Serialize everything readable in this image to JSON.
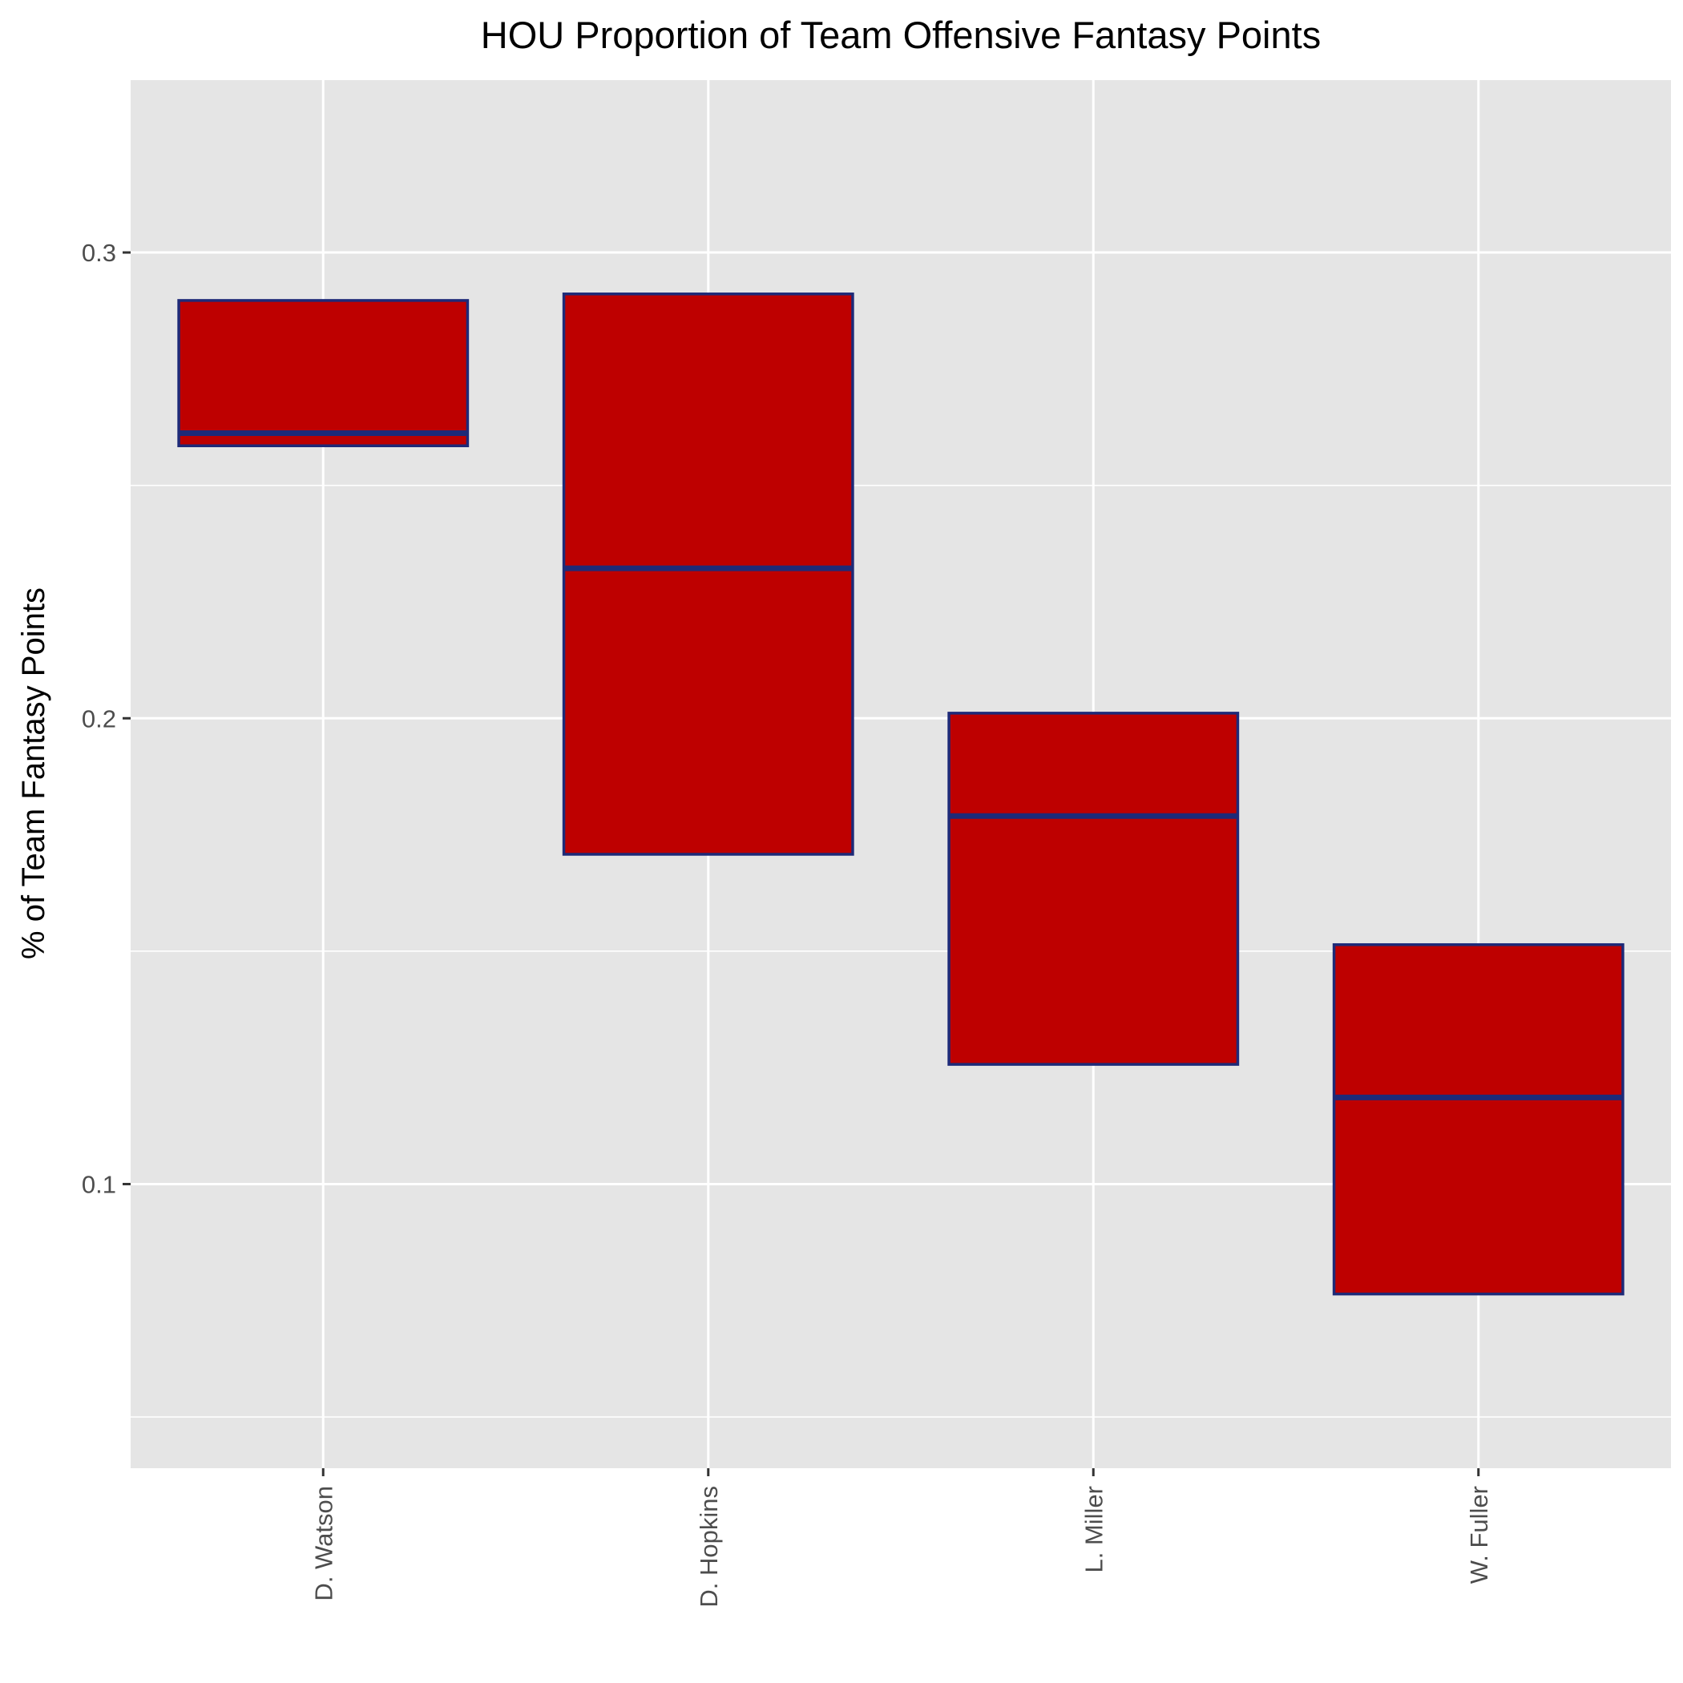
{
  "chart_data": {
    "type": "boxplot",
    "title": "HOU Proportion of Team Offensive Fantasy Points",
    "xlabel": "",
    "ylabel": "% of Team Fantasy Points",
    "ylim": [
      0.039,
      0.337
    ],
    "yticks": [
      0.1,
      0.2,
      0.3
    ],
    "ytick_labels": [
      "0.1",
      "0.2",
      "0.3"
    ],
    "grid": true,
    "categories": [
      "D. Watson",
      "D. Hopkins",
      "L. Miller",
      "W. Fuller"
    ],
    "boxes": [
      {
        "category": "D. Watson",
        "q1": 0.2585,
        "median": 0.2612,
        "q3": 0.2897
      },
      {
        "category": "D. Hopkins",
        "q1": 0.1708,
        "median": 0.2322,
        "q3": 0.2911
      },
      {
        "category": "L. Miller",
        "q1": 0.1257,
        "median": 0.179,
        "q3": 0.2011
      },
      {
        "category": "W. Fuller",
        "q1": 0.0764,
        "median": 0.1186,
        "q3": 0.1514
      }
    ],
    "colors": {
      "box_fill": "#BE0000",
      "box_stroke": "#1E2A78",
      "panel_background": "#E5E5E5",
      "grid": "#FFFFFF"
    }
  }
}
